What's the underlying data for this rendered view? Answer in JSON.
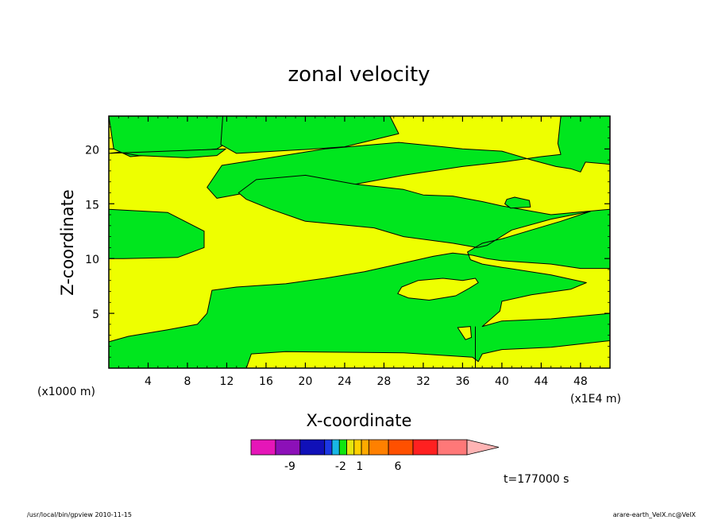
{
  "chart_data": {
    "type": "heatmap",
    "title": "zonal velocity",
    "xlabel": "X-coordinate",
    "ylabel": "Z-coordinate",
    "x_unit_left": "(x1000 m)",
    "x_unit_right": "(x1E4 m)",
    "xlim": [
      0,
      51
    ],
    "ylim": [
      0,
      23
    ],
    "x_ticks": [
      4,
      8,
      12,
      16,
      20,
      24,
      28,
      32,
      36,
      40,
      44,
      48
    ],
    "y_ticks": [
      5,
      10,
      15,
      20
    ],
    "regions": [
      {
        "level": "green",
        "pts": [
          [
            0,
            23
          ],
          [
            13,
            23
          ],
          [
            13,
            22.7
          ],
          [
            12.8,
            21
          ],
          [
            11,
            20
          ],
          [
            6,
            19.6
          ],
          [
            2.2,
            19.3
          ],
          [
            0.5,
            20
          ]
        ]
      },
      {
        "level": "green",
        "pts": [
          [
            11.6,
            23
          ],
          [
            20,
            23
          ],
          [
            28.6,
            23
          ],
          [
            29.5,
            21.4
          ],
          [
            24,
            20.2
          ],
          [
            21,
            20
          ],
          [
            13,
            19.6
          ],
          [
            11.4,
            20.4
          ]
        ]
      },
      {
        "level": "green",
        "pts": [
          [
            0,
            19.6
          ],
          [
            1,
            19.7
          ],
          [
            3,
            19.4
          ],
          [
            8,
            19.2
          ],
          [
            11,
            19.4
          ],
          [
            11.9,
            20
          ]
        ]
      },
      {
        "level": "green",
        "pts": [
          [
            15,
            19
          ],
          [
            22,
            20
          ],
          [
            29.5,
            20.6
          ],
          [
            34,
            20.2
          ],
          [
            36,
            20
          ],
          [
            40,
            19.8
          ],
          [
            43,
            19
          ],
          [
            45.5,
            18.4
          ],
          [
            47,
            18.2
          ],
          [
            48,
            17.9
          ],
          [
            48.5,
            18.8
          ],
          [
            51,
            18.6
          ],
          [
            51,
            23
          ],
          [
            46,
            23
          ],
          [
            45.7,
            20.5
          ],
          [
            46,
            19.5
          ],
          [
            44,
            19.3
          ],
          [
            40,
            18.8
          ],
          [
            36,
            18.4
          ],
          [
            30,
            17.6
          ],
          [
            24,
            16.6
          ],
          [
            18,
            16.2
          ],
          [
            14,
            16
          ],
          [
            11,
            15.5
          ],
          [
            10,
            16.5
          ],
          [
            11.5,
            18.5
          ],
          [
            15,
            19
          ]
        ]
      },
      {
        "level": "green",
        "pts": [
          [
            0,
            14.5
          ],
          [
            6,
            14.2
          ],
          [
            9.7,
            12.5
          ],
          [
            9.7,
            11
          ],
          [
            7,
            10.1
          ],
          [
            1.5,
            10
          ],
          [
            0,
            10
          ]
        ]
      },
      {
        "level": "green",
        "pts": [
          [
            13.2,
            16
          ],
          [
            15,
            17.2
          ],
          [
            20,
            17.6
          ],
          [
            25,
            16.8
          ],
          [
            30,
            16.3
          ],
          [
            32,
            15.8
          ],
          [
            35,
            15.7
          ],
          [
            38,
            15.2
          ],
          [
            40,
            14.8
          ],
          [
            45,
            14
          ],
          [
            51,
            14.5
          ],
          [
            51,
            9.1
          ],
          [
            48,
            9.1
          ],
          [
            45,
            9.5
          ],
          [
            40,
            9.8
          ],
          [
            38.5,
            10
          ],
          [
            37,
            10.3
          ],
          [
            35,
            10.5
          ],
          [
            33,
            10.2
          ],
          [
            30,
            9.6
          ],
          [
            26,
            8.8
          ],
          [
            22,
            8.2
          ],
          [
            18,
            7.7
          ],
          [
            13,
            7.4
          ],
          [
            10.5,
            7.1
          ],
          [
            10,
            5
          ],
          [
            9,
            4
          ],
          [
            6,
            3.5
          ],
          [
            2,
            2.9
          ],
          [
            0,
            2.4
          ],
          [
            0,
            0
          ],
          [
            14,
            0
          ],
          [
            14.5,
            1.3
          ],
          [
            18,
            1.5
          ],
          [
            30,
            1.4
          ],
          [
            37,
            1.0
          ],
          [
            37.6,
            0.6
          ],
          [
            38,
            1.3
          ],
          [
            40,
            1.7
          ],
          [
            45,
            1.9
          ],
          [
            51,
            2.5
          ],
          [
            51,
            5
          ],
          [
            45,
            4.5
          ],
          [
            40,
            4.3
          ],
          [
            38,
            3.8
          ],
          [
            39.8,
            5.2
          ],
          [
            40,
            6.1
          ],
          [
            43,
            6.7
          ],
          [
            47,
            7.2
          ],
          [
            48.6,
            7.8
          ],
          [
            45,
            8.5
          ],
          [
            40,
            9.2
          ],
          [
            38,
            9.5
          ],
          [
            36.8,
            9.9
          ],
          [
            36.5,
            10.6
          ],
          [
            38,
            11.4
          ],
          [
            40,
            11.8
          ],
          [
            43,
            12.6
          ],
          [
            46,
            13.4
          ],
          [
            49,
            14.3
          ],
          [
            45,
            13.6
          ],
          [
            41,
            12.6
          ],
          [
            38.5,
            11.2
          ],
          [
            37.5,
            11
          ],
          [
            35,
            11.4
          ],
          [
            30,
            12
          ],
          [
            27,
            12.8
          ],
          [
            20,
            13.4
          ],
          [
            16.5,
            14.5
          ],
          [
            14,
            15.4
          ]
        ]
      },
      {
        "level": "green",
        "pts": [
          [
            40.5,
            15.4
          ],
          [
            41.3,
            15.6
          ],
          [
            42.8,
            15.3
          ],
          [
            42.9,
            14.7
          ],
          [
            40.9,
            14.6
          ],
          [
            40.3,
            15
          ]
        ]
      }
    ],
    "islands_yellow": [
      {
        "pts": [
          [
            29.8,
            7.4
          ],
          [
            31.5,
            8
          ],
          [
            34,
            8.2
          ],
          [
            36,
            8
          ],
          [
            37.3,
            8.2
          ],
          [
            37.6,
            7.8
          ],
          [
            36.7,
            7.3
          ],
          [
            35.3,
            6.6
          ],
          [
            32.6,
            6.2
          ],
          [
            30.5,
            6.4
          ],
          [
            29.4,
            6.8
          ]
        ]
      },
      {
        "pts": [
          [
            35.5,
            3.7
          ],
          [
            36.8,
            3.8
          ],
          [
            36.9,
            2.8
          ],
          [
            36.3,
            2.6
          ]
        ]
      }
    ],
    "colorbar": {
      "colors": [
        "#e516b8",
        "#8c10b8",
        "#1010b8",
        "#1c38e5",
        "#18b6e5",
        "#10e510",
        "#e5e510",
        "#ffd000",
        "#ffaa00",
        "#ff8000",
        "#ff5000",
        "#ff2020",
        "#ff7878",
        "#ffb4b4"
      ],
      "labels": [
        {
          "text": "-9",
          "pos": 0.18
        },
        {
          "text": "-2",
          "pos": 0.415
        },
        {
          "text": "1",
          "pos": 0.503
        },
        {
          "text": "6",
          "pos": 0.68
        }
      ]
    },
    "time_label": "t=177000 s",
    "footer_left": "/usr/local/bin/gpview  2010-11-15",
    "footer_right": "arare-earth_VelX.nc@VelX",
    "colors": {
      "positive": "#eeff00",
      "negative": "#00e61e"
    }
  }
}
